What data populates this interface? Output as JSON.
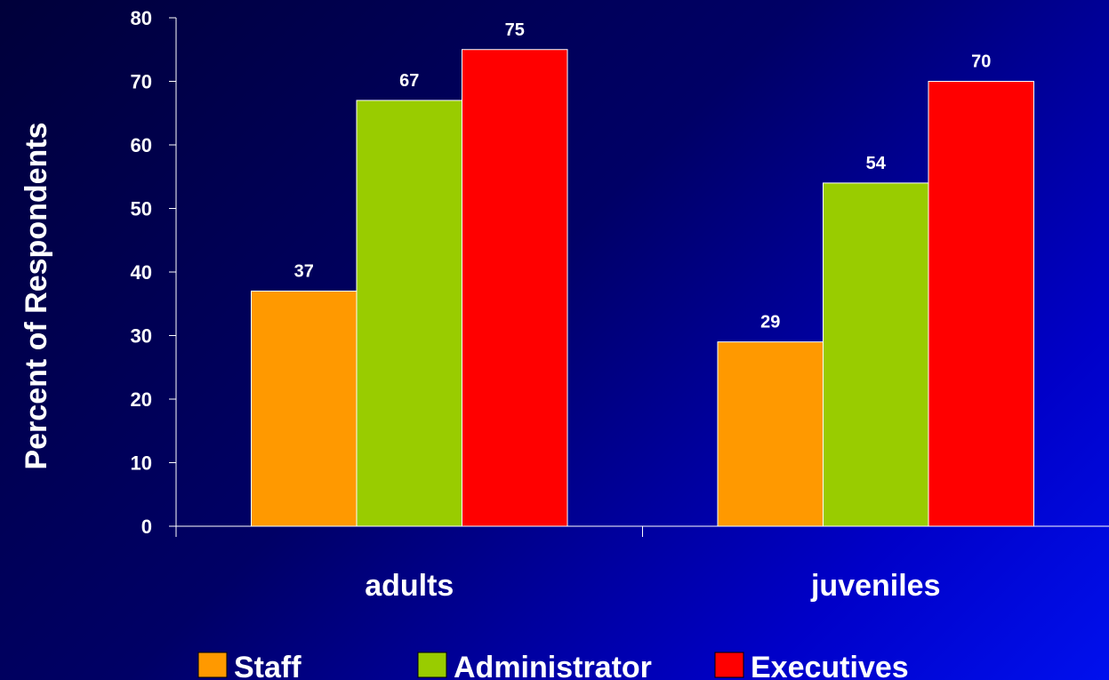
{
  "chart_data": {
    "type": "bar",
    "categories": [
      "adults",
      "juveniles"
    ],
    "series": [
      {
        "name": "Staff",
        "values": [
          37,
          29
        ],
        "color": "#ff9900"
      },
      {
        "name": "Administrator",
        "values": [
          67,
          54
        ],
        "color": "#99cc00"
      },
      {
        "name": "Executives",
        "values": [
          75,
          70
        ],
        "color": "#ff0000"
      }
    ],
    "ylabel": "Percent of Respondents",
    "xlabel": "",
    "ylim": [
      0,
      80
    ],
    "yticks": [
      0,
      10,
      20,
      30,
      40,
      50,
      60,
      70,
      80
    ],
    "grid": false,
    "legend_position": "bottom"
  }
}
